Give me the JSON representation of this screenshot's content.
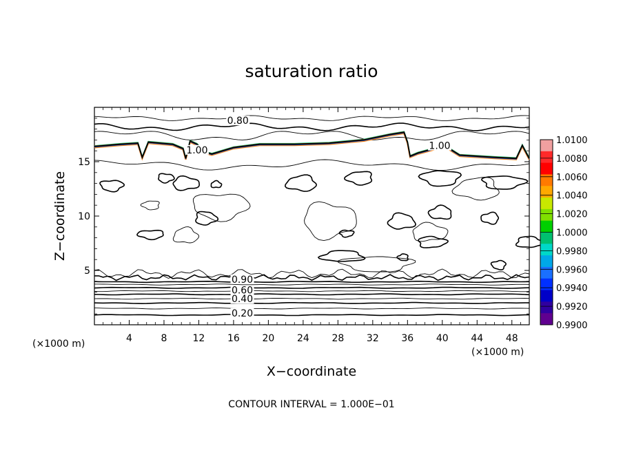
{
  "chart_data": {
    "type": "contour",
    "title": "saturation ratio",
    "xlabel": "X−coordinate",
    "ylabel": "Z−coordinate",
    "x_unit_left": "(×1000 m)",
    "x_unit_right": "(×1000 m)",
    "xlim": [
      0,
      50
    ],
    "ylim": [
      0,
      20
    ],
    "x_ticks": [
      4,
      8,
      12,
      16,
      20,
      24,
      28,
      32,
      36,
      40,
      44,
      48
    ],
    "y_ticks": [
      5,
      10,
      15
    ],
    "footer": "CONTOUR INTERVAL = 1.000E−01",
    "contour_interval": 0.1,
    "contour_labels": [
      {
        "text": "0.80",
        "x": 16.5,
        "y": 18.6
      },
      {
        "text": "1.00",
        "x": 11.8,
        "y": 15.9
      },
      {
        "text": "1.00",
        "x": 39.7,
        "y": 16.3
      },
      {
        "text": "0.90",
        "x": 17.0,
        "y": 4.0
      },
      {
        "text": "0.60",
        "x": 17.0,
        "y": 3.0
      },
      {
        "text": "0.40",
        "x": 17.0,
        "y": 2.2
      },
      {
        "text": "0.20",
        "x": 17.0,
        "y": 0.9
      }
    ],
    "colorbar": {
      "ticks": [
        "1.0100",
        "1.0080",
        "1.0060",
        "1.0040",
        "1.0020",
        "1.0000",
        "0.9980",
        "0.9960",
        "0.9940",
        "0.9920",
        "0.9900"
      ],
      "colors": [
        "#f0a0a0",
        "#ff2a2a",
        "#ff0000",
        "#ff7a00",
        "#ffa800",
        "#c8e800",
        "#80e000",
        "#00d000",
        "#00c070",
        "#00d8c8",
        "#00a8e8",
        "#1a70ff",
        "#0030ff",
        "#0000c8",
        "#3000a0",
        "#600090"
      ]
    }
  }
}
